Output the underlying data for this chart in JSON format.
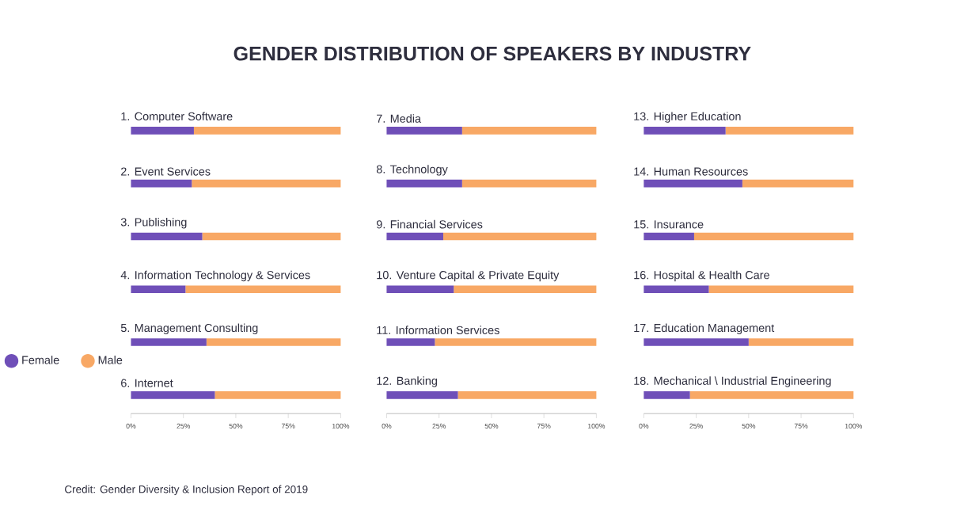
{
  "chart_data": [
    {
      "type": "bar",
      "orientation": "horizontal",
      "stacked": true,
      "title": "GENDER DISTRIBUTION OF SPEAKERS BY INDUSTRY",
      "annotations": [
        "Credit: Gender Diversity & Inclusion Report of 2019"
      ],
      "legend": "left",
      "categories": [
        "1. Computer Software",
        "2. Event Services",
        "3. Publishing",
        "4. Information Technology & Services",
        "5. Management Consulting",
        "6. Internet"
      ],
      "series": [
        {
          "name": "Female",
          "color": "#6f4fb8",
          "values": [
            30,
            29,
            34,
            26,
            36,
            40
          ]
        },
        {
          "name": "Male",
          "color": "#f8a865",
          "values": [
            70,
            71,
            66,
            74,
            64,
            60
          ]
        }
      ],
      "xlim": [
        0,
        100
      ],
      "xticks": [
        {
          "value": 0,
          "label": "0%"
        },
        {
          "value": 25,
          "label": "25%"
        },
        {
          "value": 50,
          "label": "50%"
        },
        {
          "value": 75,
          "label": "75%"
        },
        {
          "value": 100,
          "label": "100%"
        }
      ]
    },
    {
      "type": "bar",
      "orientation": "horizontal",
      "stacked": true,
      "categories": [
        "7. Media",
        "8. Technology",
        "9. Financial Services",
        "10. Venture Capital & Private Equity",
        "11. Information Services",
        "12. Banking"
      ],
      "series": [
        {
          "color": "#6f4fb8",
          "values": [
            36,
            36,
            27,
            32,
            23,
            34
          ]
        },
        {
          "color": "#f8a865",
          "values": [
            64,
            64,
            73,
            68,
            77,
            66
          ]
        }
      ],
      "xlim": [
        0,
        100
      ],
      "xticks": [
        {
          "value": 0,
          "label": "0%"
        },
        {
          "value": 25,
          "label": "25%"
        },
        {
          "value": 50,
          "label": "50%"
        },
        {
          "value": 75,
          "label": "75%"
        },
        {
          "value": 100,
          "label": "100%"
        }
      ]
    },
    {
      "type": "bar",
      "orientation": "horizontal",
      "stacked": true,
      "categories": [
        "13. Higher Education",
        "14. Human Resources",
        "15. Insurance",
        "16. Hospital & Health Care",
        "17. Education Management",
        "18. Mechanical \\ Industrial Engineering"
      ],
      "series": [
        {
          "color": "#6f4fb8",
          "values": [
            39,
            47,
            24,
            31,
            50,
            22
          ]
        },
        {
          "color": "#f8a865",
          "values": [
            61,
            53,
            76,
            69,
            50,
            78
          ]
        }
      ],
      "xlim": [
        0,
        100
      ],
      "xticks": [
        {
          "value": 0,
          "label": "0%"
        },
        {
          "value": 25,
          "label": "25%"
        },
        {
          "value": 50,
          "label": "50%"
        },
        {
          "value": 75,
          "label": "75%"
        },
        {
          "value": 100,
          "label": "100%"
        }
      ]
    }
  ]
}
